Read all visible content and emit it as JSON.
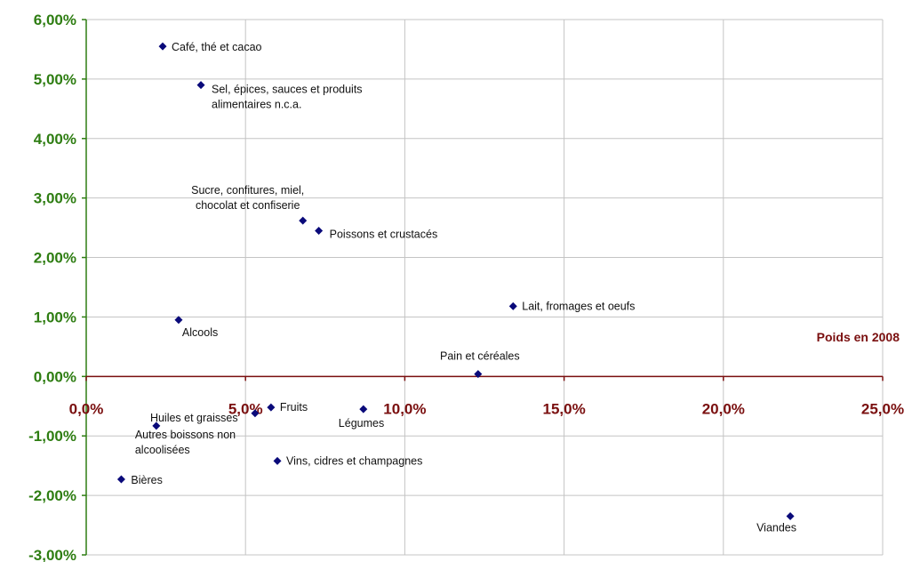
{
  "chart_data": {
    "type": "scatter",
    "xlabel": "Poids en 2008",
    "ylabel": "",
    "xlim": [
      0,
      25
    ],
    "ylim": [
      -3,
      6
    ],
    "x_ticks": [
      0,
      5,
      10,
      15,
      20,
      25
    ],
    "x_tick_labels": [
      "0,0%",
      "5,0%",
      "10,0%",
      "15,0%",
      "20,0%",
      "25,0%"
    ],
    "y_ticks": [
      -3,
      -2,
      -1,
      0,
      1,
      2,
      3,
      4,
      5,
      6
    ],
    "y_tick_labels": [
      "-3,00%",
      "-2,00%",
      "-1,00%",
      "0,00%",
      "1,00%",
      "2,00%",
      "3,00%",
      "4,00%",
      "5,00%",
      "6,00%"
    ],
    "grid": true,
    "marker_color": "#0a0a7a",
    "x_axis_color": "#7a0f0f",
    "y_axis_color": "#2e7d12",
    "points": [
      {
        "label": [
          "Café, thé et cacao"
        ],
        "x": 2.4,
        "y": 5.55
      },
      {
        "label": [
          "Sel, épices, sauces et produits",
          "alimentaires n.c.a."
        ],
        "x": 3.6,
        "y": 4.9
      },
      {
        "label": [
          "Sucre, confitures, miel,",
          "chocolat et confiserie"
        ],
        "x": 6.8,
        "y": 2.62
      },
      {
        "label": [
          "Poissons et crustacés"
        ],
        "x": 7.3,
        "y": 2.45
      },
      {
        "label": [
          "Lait, fromages et oeufs"
        ],
        "x": 13.4,
        "y": 1.18
      },
      {
        "label": [
          "Alcools"
        ],
        "x": 2.9,
        "y": 0.95
      },
      {
        "label": [
          "Pain et céréales"
        ],
        "x": 12.3,
        "y": 0.04
      },
      {
        "label": [
          "Fruits"
        ],
        "x": 5.8,
        "y": -0.52
      },
      {
        "label": [
          "Huiles et graisses"
        ],
        "x": 5.3,
        "y": -0.62
      },
      {
        "label": [
          "Légumes"
        ],
        "x": 8.7,
        "y": -0.55
      },
      {
        "label": [
          "Autres boissons non",
          "alcoolisées"
        ],
        "x": 2.2,
        "y": -0.83
      },
      {
        "label": [
          "Vins, cidres et champagnes"
        ],
        "x": 6.0,
        "y": -1.42
      },
      {
        "label": [
          "Bières"
        ],
        "x": 1.1,
        "y": -1.73
      },
      {
        "label": [
          "Viandes"
        ],
        "x": 22.1,
        "y": -2.35
      }
    ]
  }
}
